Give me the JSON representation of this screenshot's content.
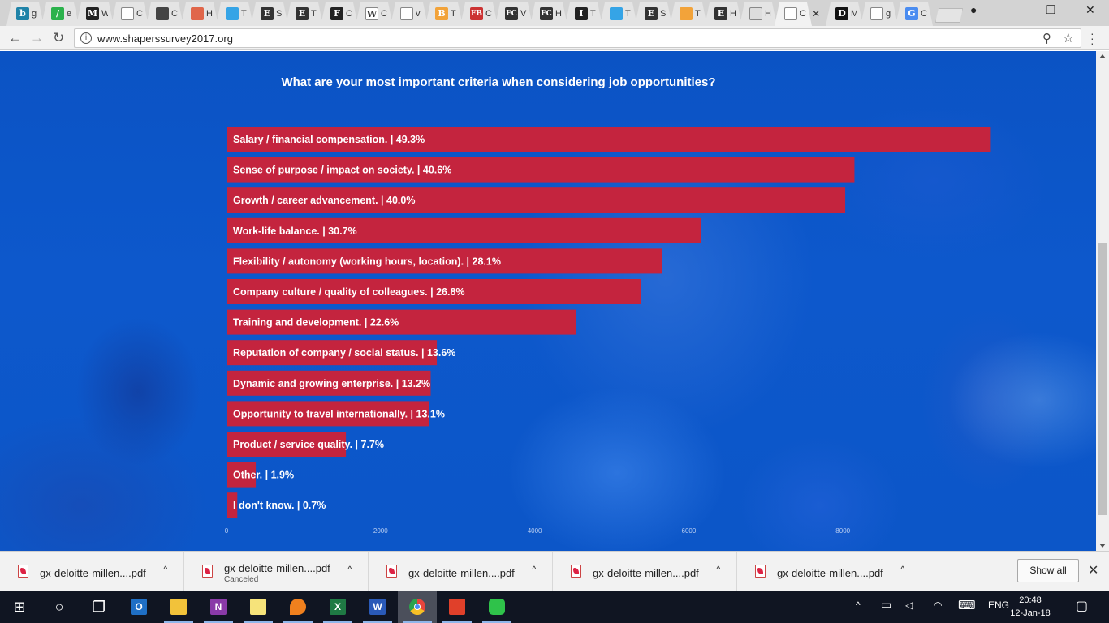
{
  "browser": {
    "tabs": [
      {
        "icon": "bing-icon",
        "letter": "b",
        "color": "#1f83a8",
        "title": "g"
      },
      {
        "icon": "feedly-icon",
        "letter": "/",
        "color": "#2bb24c",
        "title": "e"
      },
      {
        "icon": "medium-icon",
        "letter": "M",
        "color": "#222222",
        "title": "W"
      },
      {
        "icon": "page-icon",
        "letter": "",
        "color": "#ffffff",
        "title": "C"
      },
      {
        "icon": "panda-icon",
        "letter": "",
        "color": "#444444",
        "title": "C"
      },
      {
        "icon": "briefcase-icon",
        "letter": "",
        "color": "#e0664a",
        "title": "H"
      },
      {
        "icon": "square-icon",
        "letter": "",
        "color": "#35a4e6",
        "title": "T"
      },
      {
        "icon": "economist-icon",
        "letter": "E",
        "color": "#333333",
        "title": "S"
      },
      {
        "icon": "economist-icon",
        "letter": "E",
        "color": "#333333",
        "title": "T"
      },
      {
        "icon": "fast-company-icon",
        "letter": "F",
        "color": "#222222",
        "title": "C"
      },
      {
        "icon": "wikipedia-icon",
        "letter": "W",
        "color": "#ffffff",
        "title": "C"
      },
      {
        "icon": "page-icon",
        "letter": "",
        "color": "#ffffff",
        "title": "v"
      },
      {
        "icon": "bitcoin-icon",
        "letter": "B",
        "color": "#f2a33a",
        "title": "T"
      },
      {
        "icon": "fb-icon",
        "letter": "FB",
        "color": "#cc3333",
        "title": "C"
      },
      {
        "icon": "fc-icon",
        "letter": "FC",
        "color": "#333333",
        "title": "V"
      },
      {
        "icon": "fc-icon",
        "letter": "FC",
        "color": "#333333",
        "title": "H"
      },
      {
        "icon": "tall-icon",
        "letter": "I",
        "color": "#222222",
        "title": "T"
      },
      {
        "icon": "square-icon",
        "letter": "",
        "color": "#35a4e6",
        "title": "T"
      },
      {
        "icon": "economist-icon",
        "letter": "E",
        "color": "#333333",
        "title": "S"
      },
      {
        "icon": "bars-icon",
        "letter": "",
        "color": "#f2a33a",
        "title": "T"
      },
      {
        "icon": "economist-icon",
        "letter": "E",
        "color": "#333333",
        "title": "H"
      },
      {
        "icon": "envelope-icon",
        "letter": "",
        "color": "#dddddd",
        "title": "H"
      }
    ],
    "active_tab": {
      "icon": "page-icon",
      "title": "C",
      "close": "✕"
    },
    "tabs_after": [
      {
        "icon": "d-icon",
        "letter": "D",
        "color": "#111111",
        "title": "M"
      },
      {
        "icon": "page-icon",
        "letter": "",
        "color": "#ffffff",
        "title": "g"
      },
      {
        "icon": "translate-icon",
        "letter": "G",
        "color": "#4a8cf0",
        "title": "C"
      }
    ],
    "url": "www.shaperssurvey2017.org",
    "window_controls": {
      "profile": "●",
      "restore": "❐",
      "close": "✕"
    },
    "nav": {
      "back": "←",
      "forward": "→",
      "reload": "↻"
    },
    "info_glyph": "i",
    "zoom_glyph": "⚲",
    "star_glyph": "☆"
  },
  "page": {
    "question": "What are your most important criteria when considering job opportunities?"
  },
  "chart_data": {
    "type": "bar",
    "orientation": "horizontal",
    "bar_color": "#c4243e",
    "categories": [
      "Salary / financial compensation.",
      "Sense of purpose / impact on society.",
      "Growth / career advancement.",
      "Work-life balance.",
      "Flexibility / autonomy (working hours, location).",
      "Company culture / quality of colleagues.",
      "Training and development.",
      "Reputation of company / social status.",
      "Dynamic and growing enterprise.",
      "Opportunity to travel internationally.",
      "Product / service quality.",
      "Other.",
      "I don't know."
    ],
    "percent_labels": [
      "49.3%",
      "40.6%",
      "40.0%",
      "30.7%",
      "28.1%",
      "26.8%",
      "22.6%",
      "13.6%",
      "13.2%",
      "13.1%",
      "7.7%",
      "1.9%",
      "0.7%"
    ],
    "values": [
      9920,
      8150,
      8030,
      6160,
      5650,
      5380,
      4540,
      2730,
      2650,
      2630,
      1550,
      380,
      140
    ],
    "xticks": [
      0,
      2000,
      4000,
      6000,
      8000
    ],
    "xlim": [
      0,
      10000
    ]
  },
  "downloads": {
    "items": [
      {
        "name": "gx-deloitte-millen....pdf",
        "status": ""
      },
      {
        "name": "gx-deloitte-millen....pdf",
        "status": "Canceled"
      },
      {
        "name": "gx-deloitte-millen....pdf",
        "status": ""
      },
      {
        "name": "gx-deloitte-millen....pdf",
        "status": ""
      },
      {
        "name": "gx-deloitte-millen....pdf",
        "status": ""
      }
    ],
    "chevron": "^",
    "show_all": "Show all",
    "close": "✕"
  },
  "taskbar": {
    "apps": [
      {
        "name": "start-button",
        "icon": "windows-icon",
        "glyph": "⊞",
        "color": "#101522"
      },
      {
        "name": "cortana-button",
        "icon": "cortana-icon",
        "glyph": "○",
        "color": "#101522"
      },
      {
        "name": "task-view-button",
        "icon": "task-view-icon",
        "glyph": "❐",
        "color": "#101522"
      },
      {
        "name": "outlook-button",
        "icon": "outlook-icon",
        "glyph": "O",
        "color": "#1f6fc5"
      },
      {
        "name": "file-explorer-button",
        "icon": "folder-icon",
        "glyph": "",
        "color": "#f2c23a"
      },
      {
        "name": "onenote-button",
        "icon": "onenote-icon",
        "glyph": "N",
        "color": "#8a3aa8"
      },
      {
        "name": "sticky-notes-button",
        "icon": "sticky-notes-icon",
        "glyph": "",
        "color": "#f6e37a"
      },
      {
        "name": "firefox-button",
        "icon": "flame-icon",
        "glyph": "",
        "color": "#f0801e"
      },
      {
        "name": "excel-button",
        "icon": "excel-icon",
        "glyph": "X",
        "color": "#1f7a44"
      },
      {
        "name": "word-button",
        "icon": "word-icon",
        "glyph": "W",
        "color": "#2a5ab8"
      },
      {
        "name": "chrome-button",
        "icon": "chrome-icon",
        "glyph": "",
        "color": "#e8453c"
      },
      {
        "name": "acrobat-button",
        "icon": "acrobat-icon",
        "glyph": "",
        "color": "#e0402a"
      },
      {
        "name": "line-button",
        "icon": "line-icon",
        "glyph": "",
        "color": "#2fc24a"
      }
    ],
    "tray": {
      "chevron": "^",
      "battery": "▭",
      "volume": "◁",
      "wifi": "◠",
      "keyboard": "⌨",
      "language": "ENG",
      "notifications": "▢"
    },
    "time": "20:48",
    "date": "12-Jan-18"
  }
}
